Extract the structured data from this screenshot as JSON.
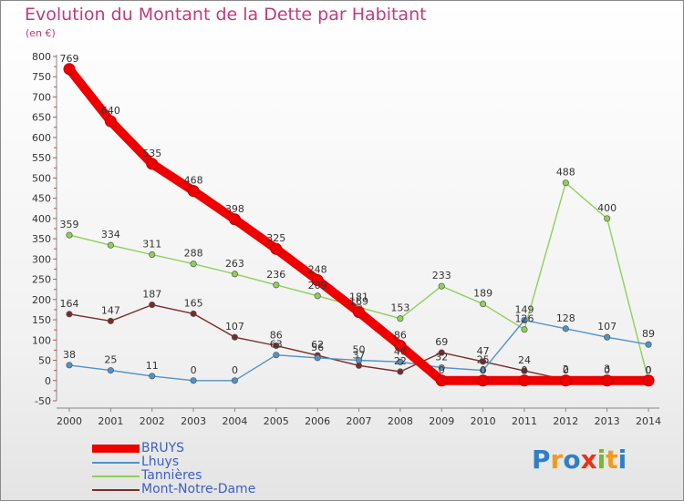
{
  "header": {
    "title": "Evolution du Montant de la Dette par Habitant",
    "unit": "(en €)"
  },
  "brand": {
    "letters": [
      "P",
      "r",
      "o",
      "x",
      "i",
      "t",
      "i"
    ],
    "colors": [
      "#2f7fc8",
      "#f39a1a",
      "#2f7fc8",
      "#e8351a",
      "#78b82a",
      "#f39a1a",
      "#2f7fc8"
    ]
  },
  "colors": {
    "BRUYS": "#ee0000",
    "Lhuys": "#4f93c8",
    "Tannières": "#8fd058",
    "Mont-Notre-Dame": "#7a2b2b"
  },
  "chart_data": {
    "type": "line",
    "title": "Evolution du Montant de la Dette par Habitant",
    "subtitle": "(en €)",
    "x": [
      "2000",
      "2001",
      "2002",
      "2003",
      "2004",
      "2005",
      "2006",
      "2007",
      "2008",
      "2009",
      "2010",
      "2011",
      "2012",
      "2013",
      "2014"
    ],
    "ylim": [
      -50,
      800
    ],
    "yticks": [
      -50,
      0,
      50,
      100,
      150,
      200,
      250,
      300,
      350,
      400,
      450,
      500,
      550,
      600,
      650,
      700,
      750,
      800
    ],
    "grid": false,
    "legend_position": "bottom-left",
    "series": [
      {
        "name": "BRUYS",
        "values": [
          769,
          640,
          535,
          468,
          398,
          325,
          248,
          169,
          86,
          0,
          0,
          0,
          0,
          0,
          0
        ]
      },
      {
        "name": "Lhuys",
        "values": [
          38,
          25,
          11,
          0,
          0,
          63,
          56,
          50,
          46,
          32,
          25,
          149,
          128,
          107,
          89
        ]
      },
      {
        "name": "Tannières",
        "values": [
          359,
          334,
          311,
          288,
          263,
          236,
          209,
          181,
          153,
          233,
          189,
          126,
          488,
          400,
          0
        ]
      },
      {
        "name": "Mont-Notre-Dame",
        "values": [
          164,
          147,
          187,
          165,
          107,
          86,
          62,
          37,
          22,
          69,
          47,
          24,
          2,
          3,
          0
        ]
      }
    ]
  }
}
